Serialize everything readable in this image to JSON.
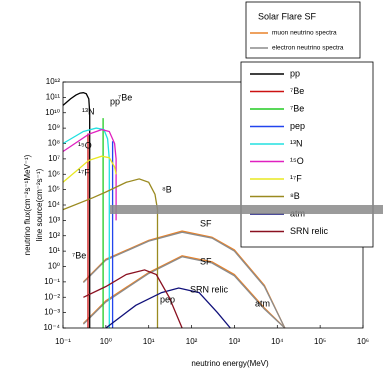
{
  "chart_data": {
    "type": "line",
    "log_x": true,
    "log_y": true,
    "xlabel": "neutrino energy(MeV)",
    "ylabel": "neutrino flux(cm⁻²s⁻¹MeV⁻¹)",
    "ylabel2": "line source(cm⁻²s⁻¹)",
    "legend_title": "Solar Flare SF",
    "xlim": [
      0.1,
      1000000
    ],
    "xticks": [
      {
        "value": 0.1,
        "label": "10⁻¹"
      },
      {
        "value": 1,
        "label": "10⁰"
      },
      {
        "value": 10,
        "label": "10¹"
      },
      {
        "value": 100,
        "label": "10²"
      },
      {
        "value": 1000,
        "label": "10³"
      },
      {
        "value": 10000,
        "label": "10⁴"
      },
      {
        "value": 100000,
        "label": "10⁵"
      },
      {
        "value": 1000000,
        "label": "10⁶"
      }
    ],
    "ylim": [
      0.0001,
      1000000000000
    ],
    "yticks": [
      {
        "value": 0.0001,
        "label": "10⁻⁴"
      },
      {
        "value": 0.001,
        "label": "10⁻³"
      },
      {
        "value": 0.01,
        "label": "10⁻²"
      },
      {
        "value": 0.1,
        "label": "10⁻¹"
      },
      {
        "value": 1,
        "label": "10⁰"
      },
      {
        "value": 10,
        "label": "10¹"
      },
      {
        "value": 100,
        "label": "10²"
      },
      {
        "value": 1000,
        "label": "10³"
      },
      {
        "value": 10000,
        "label": "10⁴"
      },
      {
        "value": 100000,
        "label": "10⁵"
      },
      {
        "value": 1000000,
        "label": "10⁶"
      },
      {
        "value": 10000000,
        "label": "10⁷"
      },
      {
        "value": 100000000,
        "label": "10⁸"
      },
      {
        "value": 1000000000,
        "label": "10⁹"
      },
      {
        "value": 10000000000,
        "label": "10¹⁰"
      },
      {
        "value": 100000000000,
        "label": "10¹¹"
      },
      {
        "value": 1000000000000,
        "label": "10¹²"
      }
    ],
    "sf_series": [
      {
        "name": "muon neutrino spectra",
        "color": "#e8822a",
        "x": [
          0.3,
          1,
          10,
          60,
          300,
          1000,
          5000,
          15000
        ],
        "values": [
          0.1,
          3,
          50,
          200,
          80,
          12,
          0.06,
          0.0001
        ]
      },
      {
        "name": "electron neutrino spectra",
        "color": "#8c8c8c",
        "x": [
          0.3,
          1,
          10,
          60,
          300,
          1000,
          5000,
          15000
        ],
        "values": [
          0.09,
          2.6,
          45,
          170,
          70,
          10,
          0.05,
          0.0001
        ]
      },
      {
        "name": "muon neutrino spectra",
        "color": "#e8822a",
        "x": [
          0.3,
          1,
          10,
          60,
          300,
          1000,
          5000,
          15000
        ],
        "values": [
          0.0002,
          0.006,
          0.4,
          5,
          2,
          0.3,
          0.002,
          0.0001
        ]
      },
      {
        "name": "electron neutrino spectra",
        "color": "#8c8c8c",
        "x": [
          0.3,
          1,
          10,
          60,
          300,
          1000,
          5000,
          15000
        ],
        "values": [
          0.00018,
          0.005,
          0.35,
          4.3,
          1.7,
          0.25,
          0.0017,
          0.0001
        ]
      }
    ],
    "series": [
      {
        "name": "pp",
        "color": "#000000",
        "x": [
          0.1,
          0.15,
          0.2,
          0.25,
          0.3,
          0.35,
          0.4,
          0.42,
          0.42
        ],
        "values": [
          30000000000,
          80000000000,
          140000000000,
          190000000000,
          200000000000,
          170000000000,
          80000000000,
          10000000000,
          0.0001
        ]
      },
      {
        "name": "⁷Be",
        "color": "#cc1111",
        "x": [
          0.384,
          0.384
        ],
        "values": [
          0.0001,
          450000000
        ]
      },
      {
        "name": "⁷Be",
        "color": "#22cc22",
        "x": [
          0.862,
          0.862
        ],
        "values": [
          0.0001,
          4500000000
        ]
      },
      {
        "name": "pep",
        "color": "#2244ee",
        "x": [
          1.44,
          1.44
        ],
        "values": [
          0.0001,
          140000000
        ]
      },
      {
        "name": "¹³N",
        "color": "#22e0e0",
        "x": [
          0.1,
          0.3,
          0.6,
          0.9,
          1.1,
          1.2,
          1.2
        ],
        "values": [
          100000000,
          600000000,
          1000000000,
          800000000,
          200000000,
          10000000,
          0.0001
        ]
      },
      {
        "name": "¹⁵O",
        "color": "#e020c0",
        "x": [
          0.1,
          0.4,
          0.8,
          1.2,
          1.6,
          1.73,
          1.73
        ],
        "values": [
          30000000,
          400000000,
          800000000,
          600000000,
          100000000,
          10000000,
          1000
        ]
      },
      {
        "name": "¹⁷F",
        "color": "#e8e820",
        "x": [
          0.1,
          0.4,
          0.8,
          1.2,
          1.6,
          1.74
        ],
        "values": [
          300000,
          8000000,
          15000000,
          12000000,
          3000000,
          1000000
        ]
      },
      {
        "name": "⁸B",
        "color": "#9a8a20",
        "x": [
          0.1,
          0.5,
          1,
          3,
          6,
          10,
          14,
          16,
          16
        ],
        "values": [
          5000,
          30000,
          70000,
          300000,
          500000,
          300000,
          50000,
          5000,
          0.0001
        ]
      },
      {
        "name": "atm",
        "color": "#10107a",
        "x": [
          1,
          5,
          20,
          50,
          150,
          400,
          800
        ],
        "values": [
          0.0001,
          0.003,
          0.02,
          0.04,
          0.02,
          0.001,
          0.0001
        ]
      },
      {
        "name": "SRN relic",
        "color": "#8a1020",
        "x": [
          0.3,
          1,
          3,
          8,
          15,
          30,
          60
        ],
        "values": [
          0.01,
          0.05,
          0.3,
          0.6,
          0.3,
          0.01,
          0.0001
        ]
      }
    ],
    "annotations": [
      "pp",
      "⁷Be",
      "¹³N",
      "¹⁵O",
      "¹⁷F",
      "⁸B",
      "⁷Be",
      "SF",
      "SF",
      "SRN relic",
      "pep",
      "atm"
    ]
  }
}
